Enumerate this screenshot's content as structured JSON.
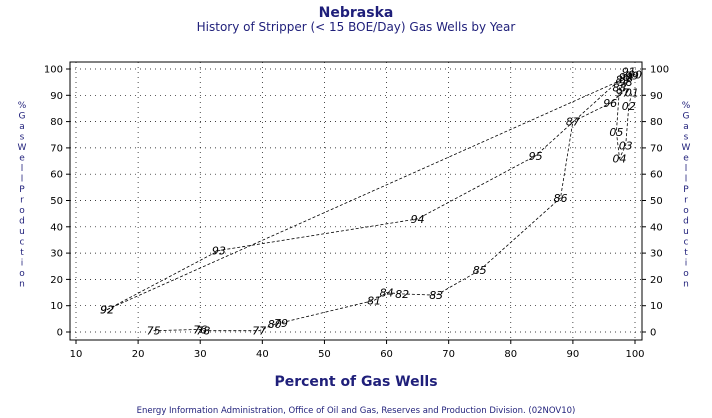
{
  "chart_data": {
    "type": "line",
    "title": "Nebraska",
    "subtitle": "History of Stripper (< 15 BOE/Day) Gas Wells by Year",
    "xlabel": "Percent of Gas Wells",
    "ylabel": "% Gas Well Production",
    "footer": "Energy Information Administration, Office of Oil and Gas, Reserves and Production Division. (02NOV10)",
    "xlim": [
      10,
      100
    ],
    "ylim": [
      0,
      100
    ],
    "xticks": [
      "10",
      "20",
      "30",
      "40",
      "50",
      "60",
      "70",
      "80",
      "90",
      "100"
    ],
    "yticks": [
      "0",
      "10",
      "20",
      "30",
      "40",
      "50",
      "60",
      "70",
      "80",
      "90",
      "100"
    ],
    "grid": true,
    "series": [
      {
        "points": [
          {
            "label": "75",
            "x": 22.5,
            "y": 0.5
          },
          {
            "label": "76",
            "x": 30,
            "y": 1
          },
          {
            "label": "78",
            "x": 30.5,
            "y": 0.5
          },
          {
            "label": "77",
            "x": 39.5,
            "y": 0.5
          },
          {
            "label": "80",
            "x": 42,
            "y": 3
          },
          {
            "label": "79",
            "x": 43,
            "y": 3.5
          },
          {
            "label": "81",
            "x": 58,
            "y": 12
          },
          {
            "label": "84",
            "x": 60,
            "y": 15
          },
          {
            "label": "82",
            "x": 62.5,
            "y": 14.5
          },
          {
            "label": "83",
            "x": 68,
            "y": 14
          },
          {
            "label": "85",
            "x": 75,
            "y": 23.5
          },
          {
            "label": "86",
            "x": 88,
            "y": 51
          },
          {
            "label": "87",
            "x": 90,
            "y": 80
          },
          {
            "label": "96",
            "x": 96,
            "y": 87
          },
          {
            "label": "97",
            "x": 98,
            "y": 91
          },
          {
            "label": "98",
            "x": 98.5,
            "y": 95
          },
          {
            "label": "99",
            "x": 99.5,
            "y": 97.5
          },
          {
            "label": "00",
            "x": 100,
            "y": 98
          }
        ]
      },
      {
        "points": [
          {
            "label": "92",
            "x": 15,
            "y": 8.5
          },
          {
            "label": "93",
            "x": 33,
            "y": 31
          },
          {
            "label": "94",
            "x": 65,
            "y": 43
          },
          {
            "label": "95",
            "x": 84,
            "y": 67
          },
          {
            "label": "91",
            "x": 99,
            "y": 99
          }
        ]
      },
      {
        "points": [
          {
            "label": "92",
            "x": 15,
            "y": 8.5
          },
          {
            "label": "89",
            "x": 98,
            "y": 96
          },
          {
            "label": "90",
            "x": 98.5,
            "y": 97
          }
        ]
      },
      {
        "points": [
          {
            "label": "88",
            "x": 97.5,
            "y": 93
          },
          {
            "label": "05",
            "x": 97,
            "y": 76
          },
          {
            "label": "04",
            "x": 97.5,
            "y": 66
          },
          {
            "label": "03",
            "x": 98.5,
            "y": 71
          },
          {
            "label": "02",
            "x": 99,
            "y": 86
          },
          {
            "label": "01",
            "x": 99.5,
            "y": 91
          }
        ]
      }
    ]
  }
}
